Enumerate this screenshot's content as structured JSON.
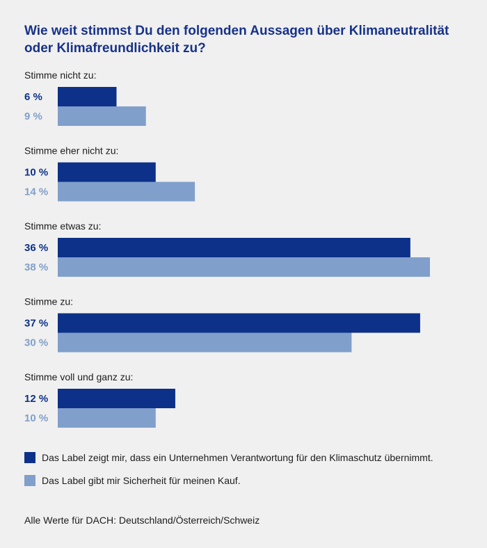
{
  "chart_data": {
    "type": "bar",
    "orientation": "horizontal",
    "title": "Wie weit stimmst Du den folgenden Aussagen über Klimaneutralität oder Klimafreundlichkeit zu?",
    "categories": [
      "Stimme nicht zu:",
      "Stimme eher nicht zu:",
      "Stimme etwas zu:",
      "Stimme zu:",
      "Stimme voll und ganz zu:"
    ],
    "series": [
      {
        "name": "Das Label zeigt mir, dass ein Unternehmen Verantwortung für den Klimaschutz übernimmt.",
        "values": [
          6,
          10,
          36,
          37,
          12
        ],
        "labels": [
          "6 %",
          "10 %",
          "36 %",
          "37 %",
          "12 %"
        ],
        "color": "#0d3189"
      },
      {
        "name": "Das Label gibt mir Sicherheit für meinen Kauf.",
        "values": [
          9,
          14,
          38,
          30,
          10
        ],
        "labels": [
          "9 %",
          "14 %",
          "38 %",
          "30 %",
          "10 %"
        ],
        "color": "#809fcb"
      }
    ],
    "unit": "%",
    "xlim": [
      0,
      38
    ],
    "grid": false,
    "legend_position": "bottom",
    "note": "Alle Werte für DACH: Deutschland/Österreich/Schweiz"
  }
}
